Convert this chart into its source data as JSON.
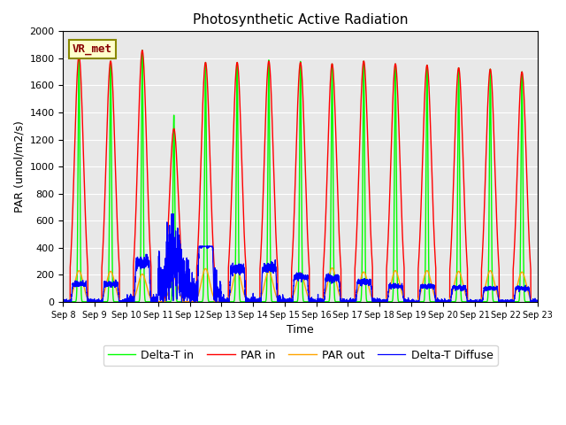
{
  "title": "Photosynthetic Active Radiation",
  "ylabel": "PAR (umol/m2/s)",
  "xlabel": "Time",
  "label_box": "VR_met",
  "ylim": [
    0,
    2000
  ],
  "yticks": [
    0,
    200,
    400,
    600,
    800,
    1000,
    1200,
    1400,
    1600,
    1800,
    2000
  ],
  "series_labels": [
    "PAR in",
    "PAR out",
    "Delta-T in",
    "Delta-T Diffuse"
  ],
  "series_colors": [
    "red",
    "orange",
    "lime",
    "blue"
  ],
  "bg_color": "#e8e8e8",
  "xtick_labels": [
    "Sep 8",
    "Sep 9",
    "Sep 10",
    "Sep 11",
    "Sep 12",
    "Sep 13",
    "Sep 14",
    "Sep 15",
    "Sep 16",
    "Sep 17",
    "Sep 18",
    "Sep 19",
    "Sep 20",
    "Sep 21",
    "Sep 22",
    "Sep 23"
  ],
  "days": 15,
  "points_per_day": 288,
  "par_in_peaks": [
    1820,
    1780,
    1860,
    1280,
    1770,
    1770,
    1780,
    1770,
    1760,
    1780,
    1760,
    1750,
    1730,
    1720,
    1700
  ],
  "par_out_peaks": [
    230,
    225,
    205,
    175,
    245,
    235,
    225,
    215,
    250,
    220,
    230,
    230,
    225,
    230,
    220
  ],
  "delta_t_in_peaks": [
    1820,
    1780,
    1860,
    1380,
    1770,
    1770,
    1790,
    1780,
    1760,
    1780,
    1760,
    1750,
    1730,
    1720,
    1700
  ],
  "delta_t_diff_peaks": [
    130,
    130,
    290,
    630,
    395,
    240,
    250,
    185,
    175,
    145,
    115,
    115,
    105,
    100,
    100
  ],
  "legend_fontsize": 9,
  "title_fontsize": 11
}
